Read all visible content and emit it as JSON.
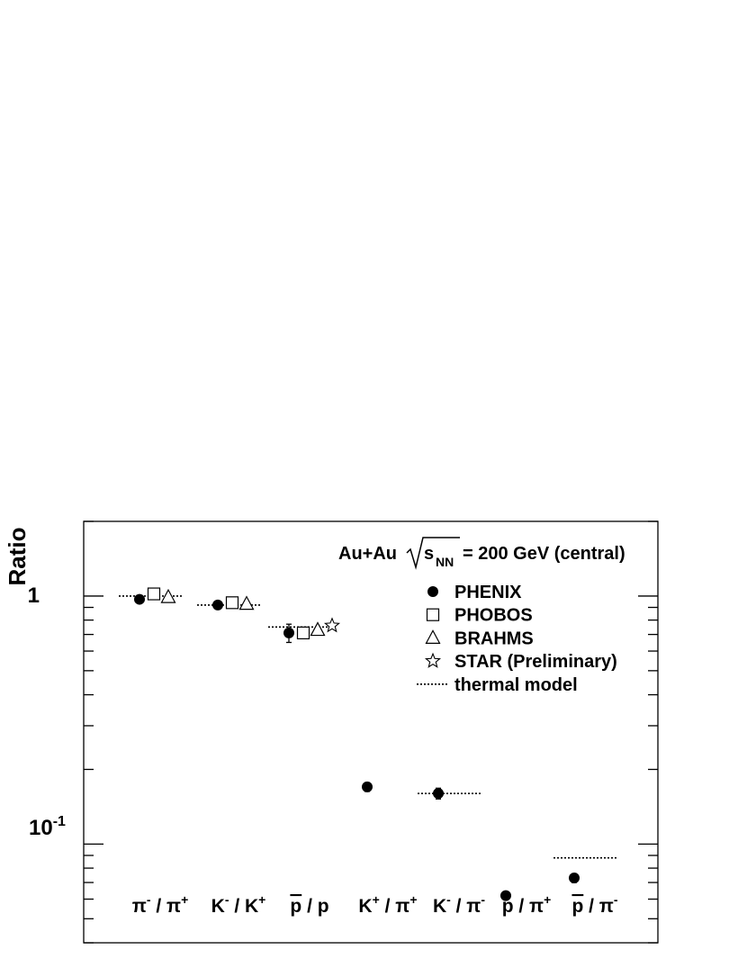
{
  "chart_data": {
    "type": "scatter",
    "scale": "log",
    "ylim": [
      0.04,
      2.0
    ],
    "ylabel": "Ratio",
    "grid": false,
    "legend_position": "top-right",
    "title": {
      "prefix": "Au+Au",
      "sqrt_base": "s",
      "sqrt_subscript": "NN",
      "suffix": "= 200 GeV (central)"
    },
    "y_tick_labels": {
      "one": "1",
      "tenth_base": "10",
      "tenth_exp": "-1"
    },
    "categories": [
      {
        "lead": "π",
        "lead_sup": "-",
        "rest": "/ π",
        "rest_sup": "+"
      },
      {
        "lead": "K",
        "lead_sup": "-",
        "rest": "/ K",
        "rest_sup": "+"
      },
      {
        "lead": "p",
        "lead_sup": "",
        "rest": "/ p",
        "rest_sup": "",
        "bar": true
      },
      {
        "lead": "K",
        "lead_sup": "+",
        "rest": "/ π",
        "rest_sup": "+"
      },
      {
        "lead": "K",
        "lead_sup": "-",
        "rest": "/ π",
        "rest_sup": "-"
      },
      {
        "lead": "p",
        "lead_sup": "",
        "rest": "/ π",
        "rest_sup": "+"
      },
      {
        "lead": "p",
        "lead_sup": "",
        "rest": "/ π",
        "rest_sup": "-",
        "bar": true
      }
    ],
    "series": [
      {
        "name": "PHENIX",
        "marker": "filled-circle",
        "values": [
          0.97,
          0.92,
          0.71,
          0.17,
          0.16,
          0.062,
          0.073
        ],
        "errors": [
          0.03,
          0.03,
          0.06,
          0.007,
          0.008,
          0.002,
          0.003
        ]
      },
      {
        "name": "PHOBOS",
        "marker": "open-square",
        "values": [
          1.02,
          0.94,
          0.71,
          null,
          null,
          null,
          null
        ]
      },
      {
        "name": "BRAHMS",
        "marker": "open-triangle",
        "values": [
          0.99,
          0.93,
          0.73,
          null,
          null,
          null,
          null
        ]
      },
      {
        "name": "STAR (Preliminary)",
        "marker": "open-star",
        "values": [
          null,
          null,
          0.76,
          null,
          null,
          null,
          null
        ]
      },
      {
        "name": "thermal model",
        "marker": "dotted-line",
        "values": [
          1.0,
          0.92,
          0.75,
          null,
          0.16,
          null,
          0.088
        ]
      }
    ]
  }
}
